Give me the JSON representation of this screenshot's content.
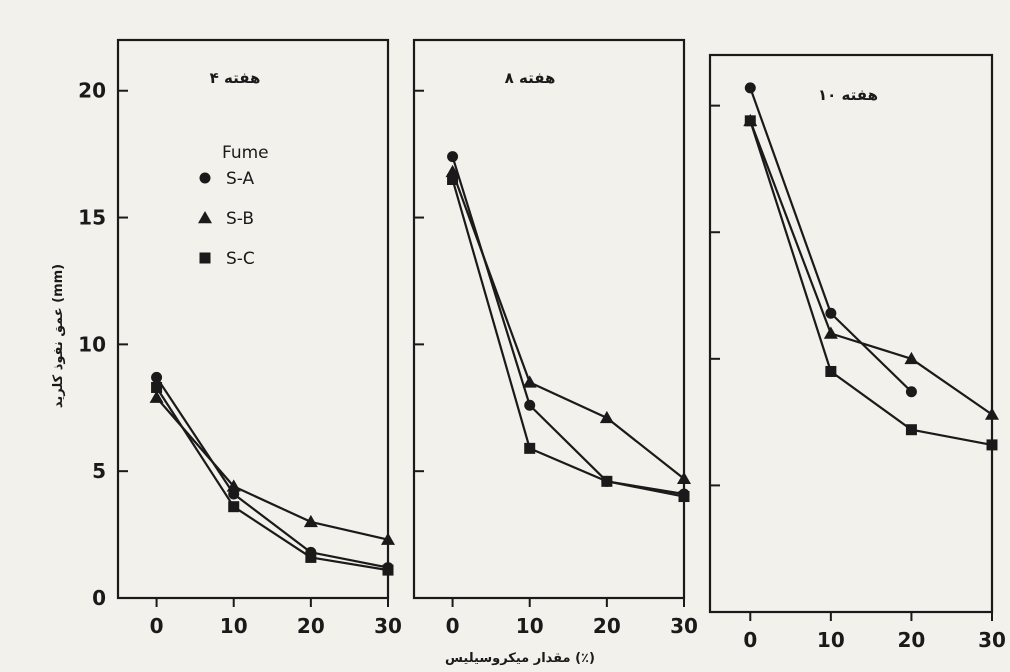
{
  "chart_data": {
    "type": "line",
    "ylabel": "عمق نفوذ کلرید (mm)",
    "xlabel": "مقدار میکروسیلیس (٪)",
    "ylim": [
      0,
      22
    ],
    "xlim": [
      -5,
      30
    ],
    "yticks": [
      0,
      5,
      10,
      15,
      20
    ],
    "xticks": [
      0,
      10,
      20,
      30
    ],
    "yticks_labeled_on": "first-panel",
    "legend": {
      "title": "Fume",
      "placement": "upper-left of first panel",
      "entries": [
        {
          "label": "S-A",
          "marker": "circle"
        },
        {
          "label": "S-B",
          "marker": "triangle"
        },
        {
          "label": "S-C",
          "marker": "square"
        }
      ]
    },
    "panels": [
      {
        "title": "هفته ۴",
        "series": [
          {
            "name": "S-A",
            "marker": "circle",
            "x": [
              0,
              10,
              20,
              30
            ],
            "y": [
              8.7,
              4.1,
              1.8,
              1.2
            ]
          },
          {
            "name": "S-B",
            "marker": "triangle",
            "x": [
              0,
              10,
              20,
              30
            ],
            "y": [
              7.9,
              4.4,
              3.0,
              2.3
            ]
          },
          {
            "name": "S-C",
            "marker": "square",
            "x": [
              0,
              10,
              20,
              30
            ],
            "y": [
              8.3,
              3.6,
              1.6,
              1.1
            ]
          }
        ]
      },
      {
        "title": "هفته ۸",
        "series": [
          {
            "name": "S-A",
            "marker": "circle",
            "x": [
              0,
              10,
              20,
              30
            ],
            "y": [
              17.4,
              7.6,
              4.6,
              4.1
            ]
          },
          {
            "name": "S-B",
            "marker": "triangle",
            "x": [
              0,
              10,
              20,
              30
            ],
            "y": [
              16.8,
              8.5,
              7.1,
              4.7
            ]
          },
          {
            "name": "S-C",
            "marker": "square",
            "x": [
              0,
              10,
              20,
              30
            ],
            "y": [
              16.5,
              5.9,
              4.6,
              4.0
            ]
          }
        ]
      },
      {
        "title": "هفته ۱۰",
        "series": [
          {
            "name": "S-A",
            "marker": "circle",
            "x": [
              0,
              10,
              20
            ],
            "y": [
              20.7,
              11.8,
              8.7
            ]
          },
          {
            "name": "S-B",
            "marker": "triangle",
            "x": [
              0,
              10,
              20,
              30
            ],
            "y": [
              19.4,
              11.0,
              10.0,
              7.8
            ]
          },
          {
            "name": "S-C",
            "marker": "square",
            "x": [
              0,
              10,
              20,
              30
            ],
            "y": [
              19.4,
              9.5,
              7.2,
              6.6
            ]
          }
        ]
      }
    ]
  }
}
